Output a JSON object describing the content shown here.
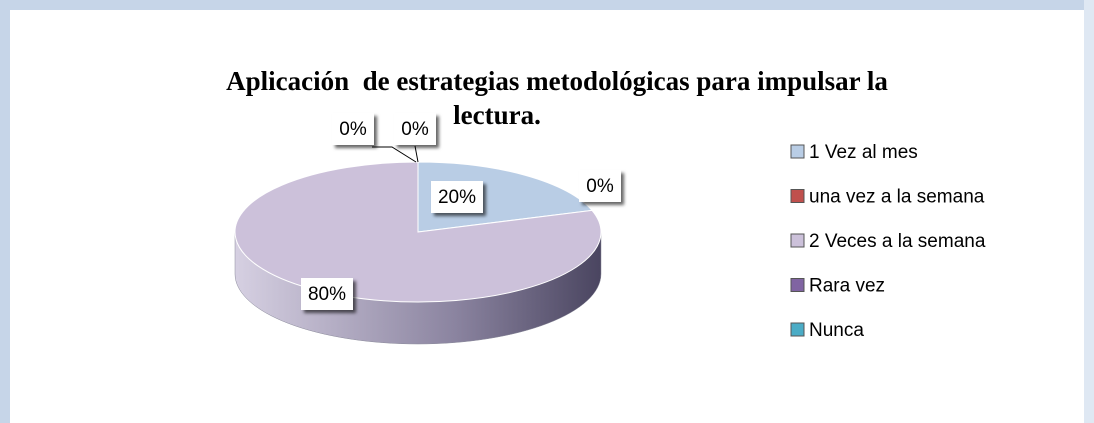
{
  "chart_data": {
    "type": "pie3d",
    "title": [
      "Aplicación  de estrategias metodológicas para impulsar la",
      "lectura."
    ],
    "categories": [
      "1 Vez al mes",
      "una vez a la semana",
      "2 Veces a la semana",
      "Rara vez",
      "Nunca"
    ],
    "values": [
      20,
      0,
      80,
      0,
      0
    ],
    "value_labels": [
      "20%",
      "0%",
      "80%",
      "0%",
      "0%"
    ],
    "colors": [
      "#b9cde5",
      "#c0504d",
      "#ccc1da",
      "#8064a2",
      "#4bacc6"
    ],
    "legend": "right"
  }
}
